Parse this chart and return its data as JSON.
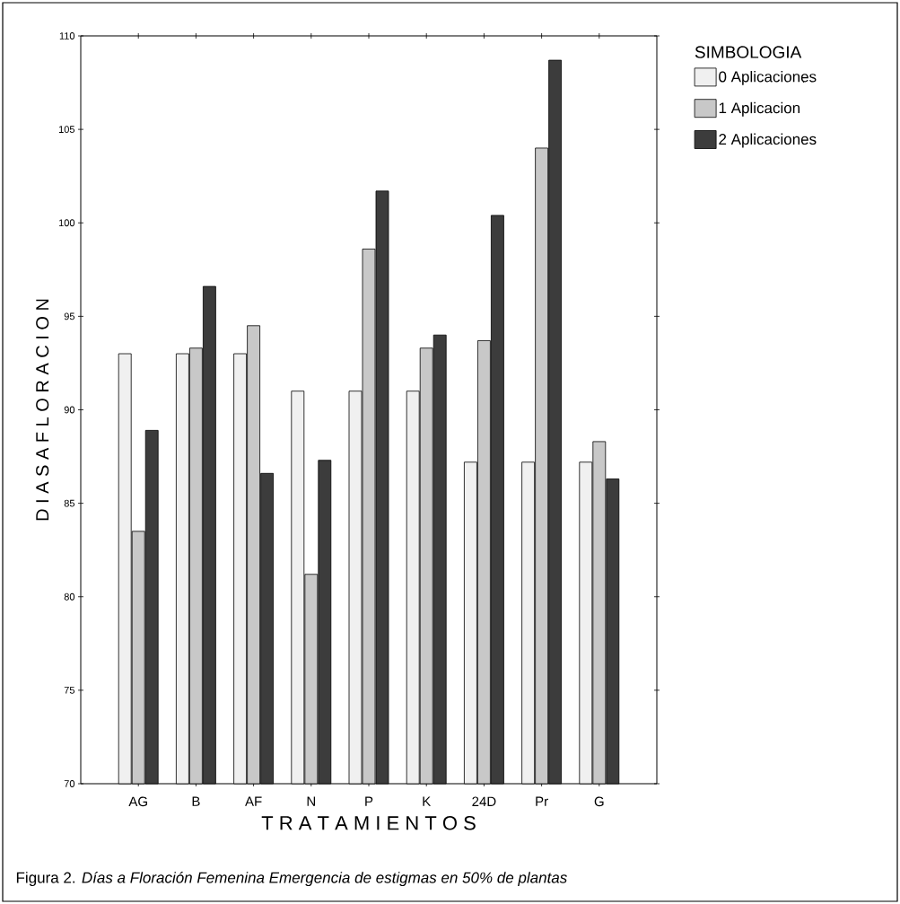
{
  "chart_data": {
    "type": "bar",
    "xlabel": "T R A T A M I E N T O S",
    "ylabel": "D I A S   A   F L O R A C I O N",
    "legend_title": "SIMBOLOGIA",
    "annotations": [
      "Figura 2. *Días a Floración Femenina Emergencia de estigmas en 50% de plantas*"
    ],
    "categories": [
      "AG",
      "B",
      "AF",
      "N",
      "P",
      "K",
      "24D",
      "Pr",
      "G"
    ],
    "series": [
      {
        "name": "0 Aplicaciones",
        "color": "#f0f0f0",
        "values": [
          93.0,
          93.0,
          93.0,
          91.0,
          91.0,
          91.0,
          87.2,
          87.2,
          87.2
        ]
      },
      {
        "name": "1 Aplicacion",
        "color": "#c8c8c8",
        "values": [
          83.5,
          93.3,
          94.5,
          81.2,
          98.6,
          93.3,
          93.7,
          104.0,
          88.3
        ]
      },
      {
        "name": "2 Aplicaciones",
        "color": "#3c3c3c",
        "values": [
          88.9,
          96.6,
          86.6,
          87.3,
          101.7,
          94.0,
          100.4,
          108.7,
          86.3
        ]
      }
    ],
    "ylim": [
      70,
      110
    ],
    "yticks": [
      70,
      75,
      80,
      85,
      90,
      95,
      100,
      105,
      110
    ],
    "legend": "top right"
  }
}
